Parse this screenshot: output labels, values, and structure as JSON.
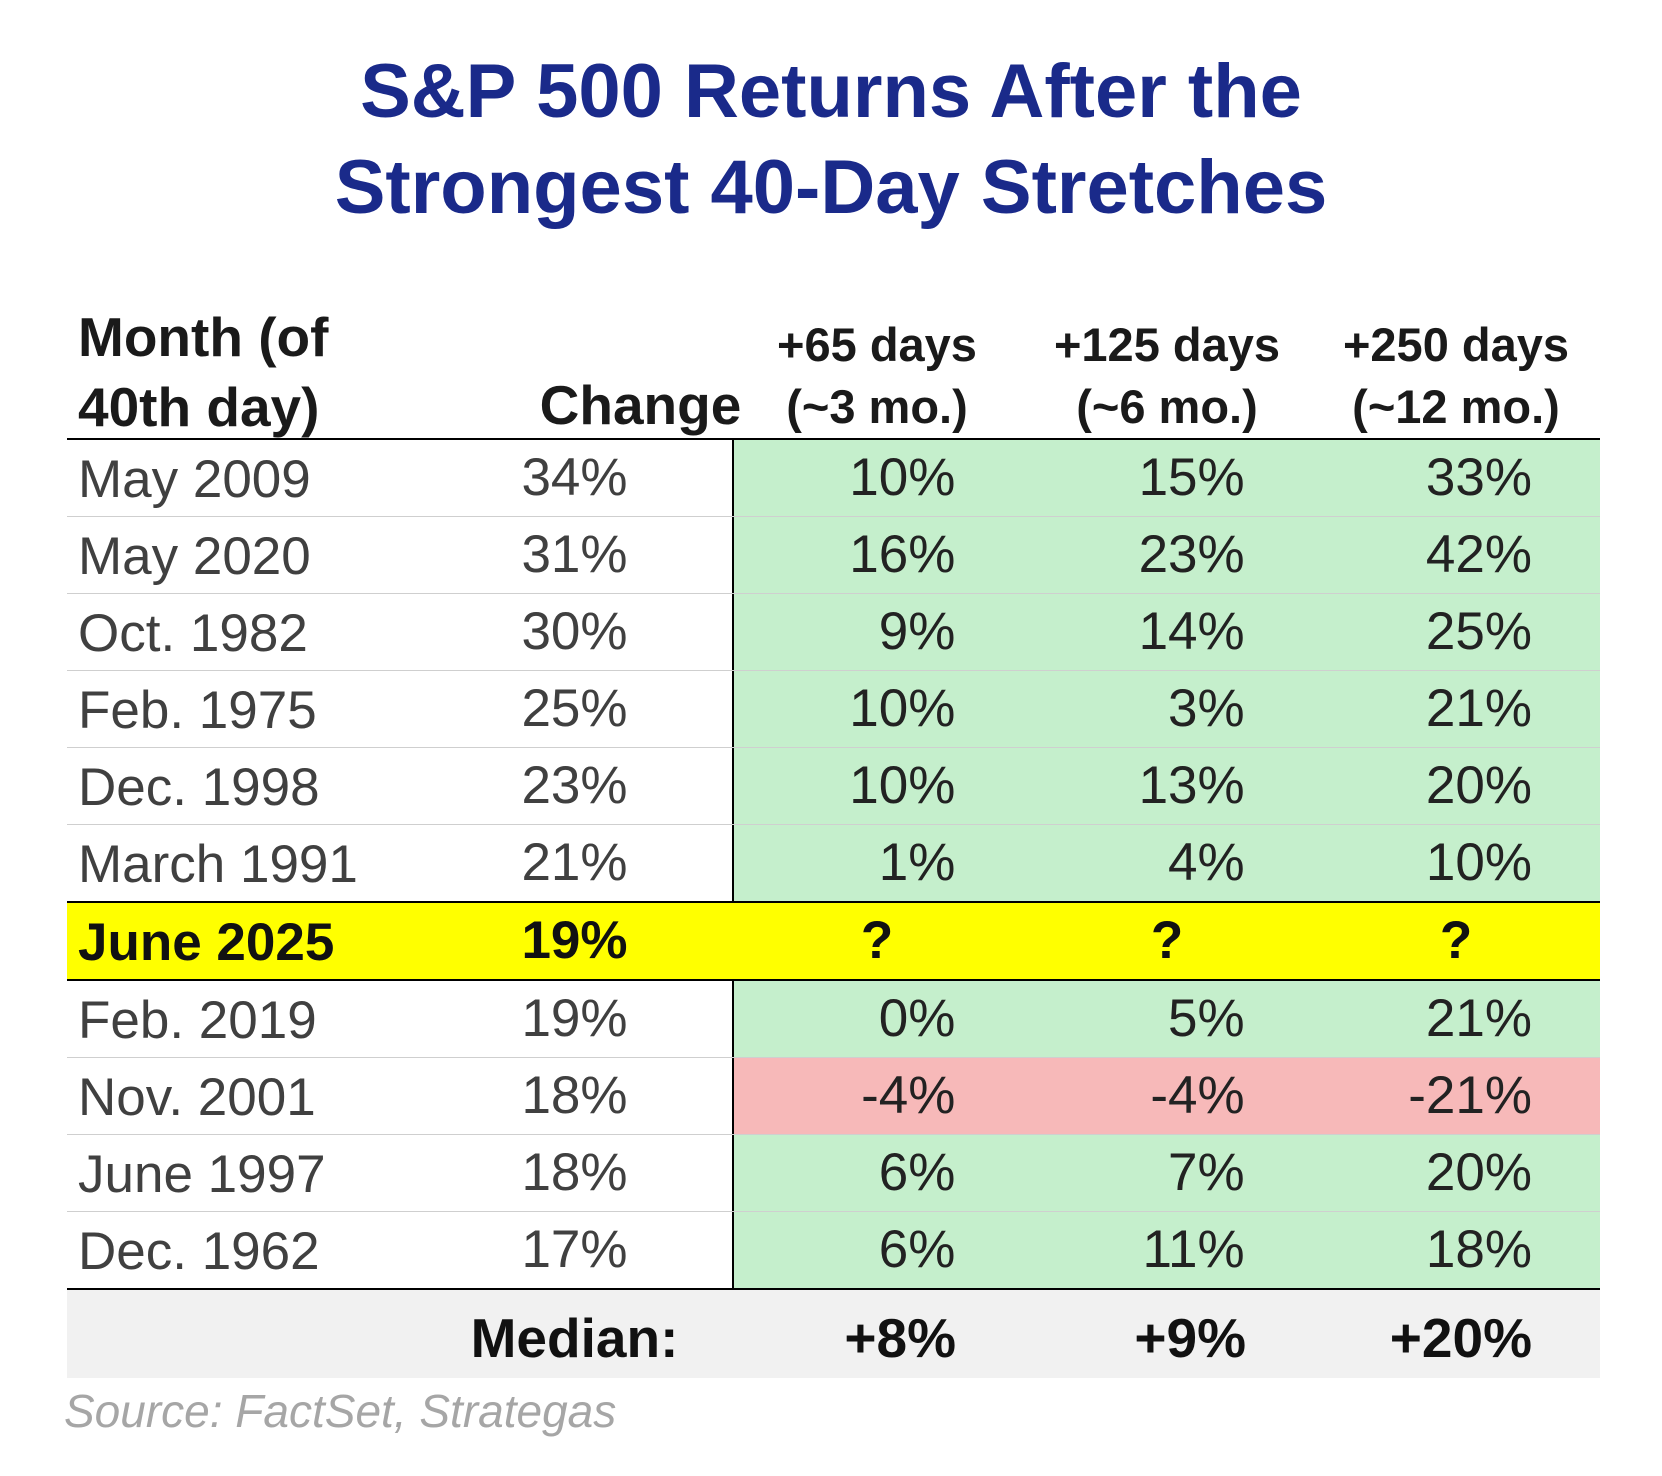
{
  "chart_data": {
    "type": "table",
    "title_lines": [
      "S&P 500 Returns After the",
      "Strongest 40-Day Stretches"
    ],
    "columns": {
      "month": [
        "Month (of",
        "40th day)"
      ],
      "change": "Change",
      "d65": [
        "+65 days",
        "(~3 mo.)"
      ],
      "d125": [
        "+125 days",
        "(~6 mo.)"
      ],
      "d250": [
        "+250 days",
        "(~12 mo.)"
      ]
    },
    "rows": [
      {
        "month": "May 2009",
        "change": "34%",
        "d65": "10%",
        "d125": "15%",
        "d250": "33%",
        "tone": "pos"
      },
      {
        "month": "May 2020",
        "change": "31%",
        "d65": "16%",
        "d125": "23%",
        "d250": "42%",
        "tone": "pos"
      },
      {
        "month": "Oct. 1982",
        "change": "30%",
        "d65": "9%",
        "d125": "14%",
        "d250": "25%",
        "tone": "pos"
      },
      {
        "month": "Feb. 1975",
        "change": "25%",
        "d65": "10%",
        "d125": "3%",
        "d250": "21%",
        "tone": "pos"
      },
      {
        "month": "Dec. 1998",
        "change": "23%",
        "d65": "10%",
        "d125": "13%",
        "d250": "20%",
        "tone": "pos"
      },
      {
        "month": "March 1991",
        "change": "21%",
        "d65": "1%",
        "d125": "4%",
        "d250": "10%",
        "tone": "pos"
      },
      {
        "month": "June 2025",
        "change": "19%",
        "d65": "?",
        "d125": "?",
        "d250": "?",
        "tone": "highlight"
      },
      {
        "month": "Feb. 2019",
        "change": "19%",
        "d65": "0%",
        "d125": "5%",
        "d250": "21%",
        "tone": "pos"
      },
      {
        "month": "Nov. 2001",
        "change": "18%",
        "d65": "-4%",
        "d125": "-4%",
        "d250": "-21%",
        "tone": "neg"
      },
      {
        "month": "June 1997",
        "change": "18%",
        "d65": "6%",
        "d125": "7%",
        "d250": "20%",
        "tone": "pos"
      },
      {
        "month": "Dec. 1962",
        "change": "17%",
        "d65": "6%",
        "d125": "11%",
        "d250": "18%",
        "tone": "pos"
      }
    ],
    "median": {
      "label": "Median:",
      "d65": "+8%",
      "d125": "+9%",
      "d250": "+20%"
    },
    "source": "Source: FactSet, Strategas",
    "colors": {
      "title": "#1a2a8a",
      "positive_fill": "#c5efcc",
      "negative_fill": "#f7b9b9",
      "highlight_fill": "#ffff00",
      "median_fill": "#f1f1f1",
      "source_text": "#a6a6a6"
    }
  }
}
